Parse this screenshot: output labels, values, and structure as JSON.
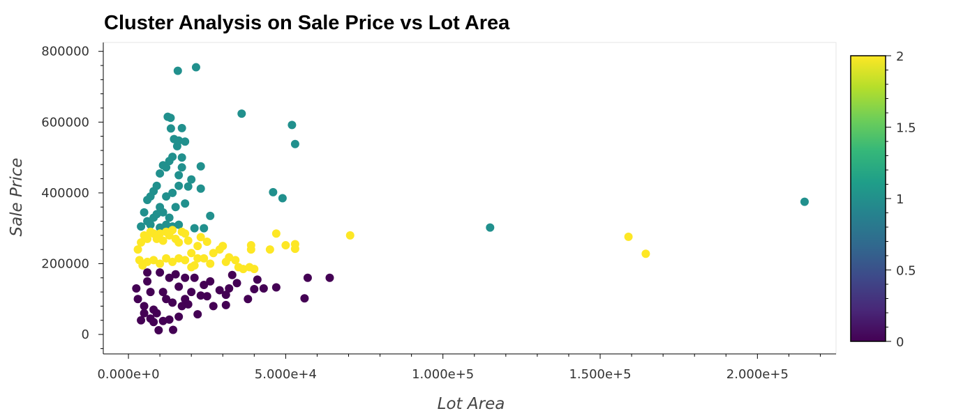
{
  "chart_data": {
    "type": "scatter",
    "title": "Cluster Analysis on Sale Price vs Lot Area",
    "xlabel": "Lot Area",
    "ylabel": "Sale Price",
    "xlim": [
      -8000,
      225000
    ],
    "ylim": [
      -55000,
      825000
    ],
    "x_ticks": [
      0,
      50000,
      100000,
      150000,
      200000
    ],
    "x_tick_labels": [
      "0.000e+0",
      "5.000e+4",
      "1.000e+5",
      "1.500e+5",
      "2.000e+5"
    ],
    "y_ticks": [
      0,
      200000,
      400000,
      600000,
      800000
    ],
    "y_tick_labels": [
      "0",
      "200000",
      "400000",
      "600000",
      "800000"
    ],
    "grid": false,
    "colorbar": {
      "colormap": "viridis",
      "range": [
        0,
        2
      ],
      "ticks": [
        0,
        0.5,
        1,
        1.5,
        2
      ],
      "tick_labels": [
        "0",
        "0.5",
        "1",
        "1.5",
        "2"
      ],
      "colors": [
        "#440154",
        "#482878",
        "#3e4989",
        "#31688e",
        "#26828e",
        "#1f9e89",
        "#35b779",
        "#6ece58",
        "#b5de2b",
        "#fde725"
      ]
    },
    "cluster_colors": {
      "0": "#440154",
      "1": "#21908d",
      "2": "#fde725"
    },
    "series": [
      {
        "cluster": 0,
        "color": "#440154",
        "points": [
          [
            5000,
            60000
          ],
          [
            9600,
            12000
          ],
          [
            14200,
            13000
          ],
          [
            4000,
            40000
          ],
          [
            7000,
            45000
          ],
          [
            8000,
            35000
          ],
          [
            11000,
            38000
          ],
          [
            13000,
            42000
          ],
          [
            16000,
            50000
          ],
          [
            17000,
            80000
          ],
          [
            19000,
            85000
          ],
          [
            22000,
            57000
          ],
          [
            24000,
            140000
          ],
          [
            25000,
            108000
          ],
          [
            27000,
            80000
          ],
          [
            29000,
            125000
          ],
          [
            31000,
            83000
          ],
          [
            31000,
            112000
          ],
          [
            32000,
            130000
          ],
          [
            33000,
            168000
          ],
          [
            34500,
            145000
          ],
          [
            38000,
            100000
          ],
          [
            40000,
            128000
          ],
          [
            41000,
            155000
          ],
          [
            43000,
            130000
          ],
          [
            47000,
            133000
          ],
          [
            56000,
            102000
          ],
          [
            57000,
            160000
          ],
          [
            64000,
            160000
          ],
          [
            20000,
            120000
          ],
          [
            18000,
            100000
          ],
          [
            21000,
            160000
          ],
          [
            23000,
            110000
          ],
          [
            26000,
            150000
          ],
          [
            15000,
            170000
          ],
          [
            10000,
            175000
          ],
          [
            3000,
            100000
          ],
          [
            2500,
            130000
          ],
          [
            6000,
            150000
          ],
          [
            12000,
            100000
          ],
          [
            14000,
            90000
          ],
          [
            9000,
            60000
          ],
          [
            8000,
            70000
          ],
          [
            11000,
            120000
          ],
          [
            5000,
            80000
          ],
          [
            7000,
            120000
          ],
          [
            13000,
            160000
          ],
          [
            16000,
            135000
          ],
          [
            18000,
            160000
          ],
          [
            6000,
            175000
          ]
        ]
      },
      {
        "cluster": 1,
        "color": "#21908d",
        "points": [
          [
            215000,
            375000
          ],
          [
            115000,
            302000
          ],
          [
            52000,
            592000
          ],
          [
            53000,
            538000
          ],
          [
            46000,
            402000
          ],
          [
            49000,
            385000
          ],
          [
            36000,
            624000
          ],
          [
            15700,
            745000
          ],
          [
            21500,
            755000
          ],
          [
            12500,
            615000
          ],
          [
            13400,
            612000
          ],
          [
            13500,
            582000
          ],
          [
            14500,
            552000
          ],
          [
            15500,
            532000
          ],
          [
            16000,
            548000
          ],
          [
            17000,
            583000
          ],
          [
            18000,
            545000
          ],
          [
            17000,
            500000
          ],
          [
            23000,
            475000
          ],
          [
            23000,
            412000
          ],
          [
            26000,
            335000
          ],
          [
            24000,
            300000
          ],
          [
            21000,
            300000
          ],
          [
            20000,
            438000
          ],
          [
            19000,
            418000
          ],
          [
            17000,
            472000
          ],
          [
            16000,
            450000
          ],
          [
            14000,
            502000
          ],
          [
            13000,
            490000
          ],
          [
            12000,
            472000
          ],
          [
            11000,
            478000
          ],
          [
            10000,
            455000
          ],
          [
            9000,
            420000
          ],
          [
            8000,
            405000
          ],
          [
            7000,
            390000
          ],
          [
            6000,
            380000
          ],
          [
            5000,
            345000
          ],
          [
            4000,
            305000
          ],
          [
            6000,
            320000
          ],
          [
            8000,
            330000
          ],
          [
            10000,
            360000
          ],
          [
            12000,
            390000
          ],
          [
            14000,
            400000
          ],
          [
            11000,
            345000
          ],
          [
            13000,
            330000
          ],
          [
            15000,
            360000
          ],
          [
            16000,
            420000
          ],
          [
            18000,
            370000
          ],
          [
            9000,
            340000
          ],
          [
            12000,
            310000
          ],
          [
            14000,
            305000
          ],
          [
            10000,
            302000
          ],
          [
            7000,
            310000
          ],
          [
            16000,
            310000
          ]
        ]
      },
      {
        "cluster": 2,
        "color": "#fde725",
        "points": [
          [
            159000,
            276000
          ],
          [
            164500,
            228000
          ],
          [
            70500,
            280000
          ],
          [
            47000,
            285000
          ],
          [
            50000,
            252000
          ],
          [
            53000,
            255000
          ],
          [
            53000,
            242000
          ],
          [
            45000,
            240000
          ],
          [
            39000,
            252000
          ],
          [
            39000,
            240000
          ],
          [
            40000,
            185000
          ],
          [
            38500,
            190000
          ],
          [
            35000,
            190000
          ],
          [
            34000,
            210000
          ],
          [
            32000,
            218000
          ],
          [
            31000,
            205000
          ],
          [
            30000,
            250000
          ],
          [
            29000,
            240000
          ],
          [
            26000,
            200000
          ],
          [
            27000,
            230000
          ],
          [
            25000,
            262000
          ],
          [
            23000,
            275000
          ],
          [
            22000,
            250000
          ],
          [
            24000,
            215000
          ],
          [
            21000,
            195000
          ],
          [
            20000,
            230000
          ],
          [
            19000,
            265000
          ],
          [
            18000,
            285000
          ],
          [
            17000,
            290000
          ],
          [
            16000,
            260000
          ],
          [
            15000,
            270000
          ],
          [
            14000,
            295000
          ],
          [
            13000,
            280000
          ],
          [
            12000,
            290000
          ],
          [
            11000,
            265000
          ],
          [
            10000,
            285000
          ],
          [
            9000,
            270000
          ],
          [
            8000,
            285000
          ],
          [
            7000,
            290000
          ],
          [
            6000,
            270000
          ],
          [
            5000,
            280000
          ],
          [
            4000,
            260000
          ],
          [
            3000,
            240000
          ],
          [
            3500,
            210000
          ],
          [
            4500,
            195000
          ],
          [
            6000,
            205000
          ],
          [
            8000,
            210000
          ],
          [
            10000,
            200000
          ],
          [
            12000,
            215000
          ],
          [
            14000,
            205000
          ],
          [
            16000,
            215000
          ],
          [
            18000,
            210000
          ],
          [
            20000,
            190000
          ],
          [
            22000,
            215000
          ],
          [
            36500,
            185000
          ]
        ]
      }
    ]
  }
}
